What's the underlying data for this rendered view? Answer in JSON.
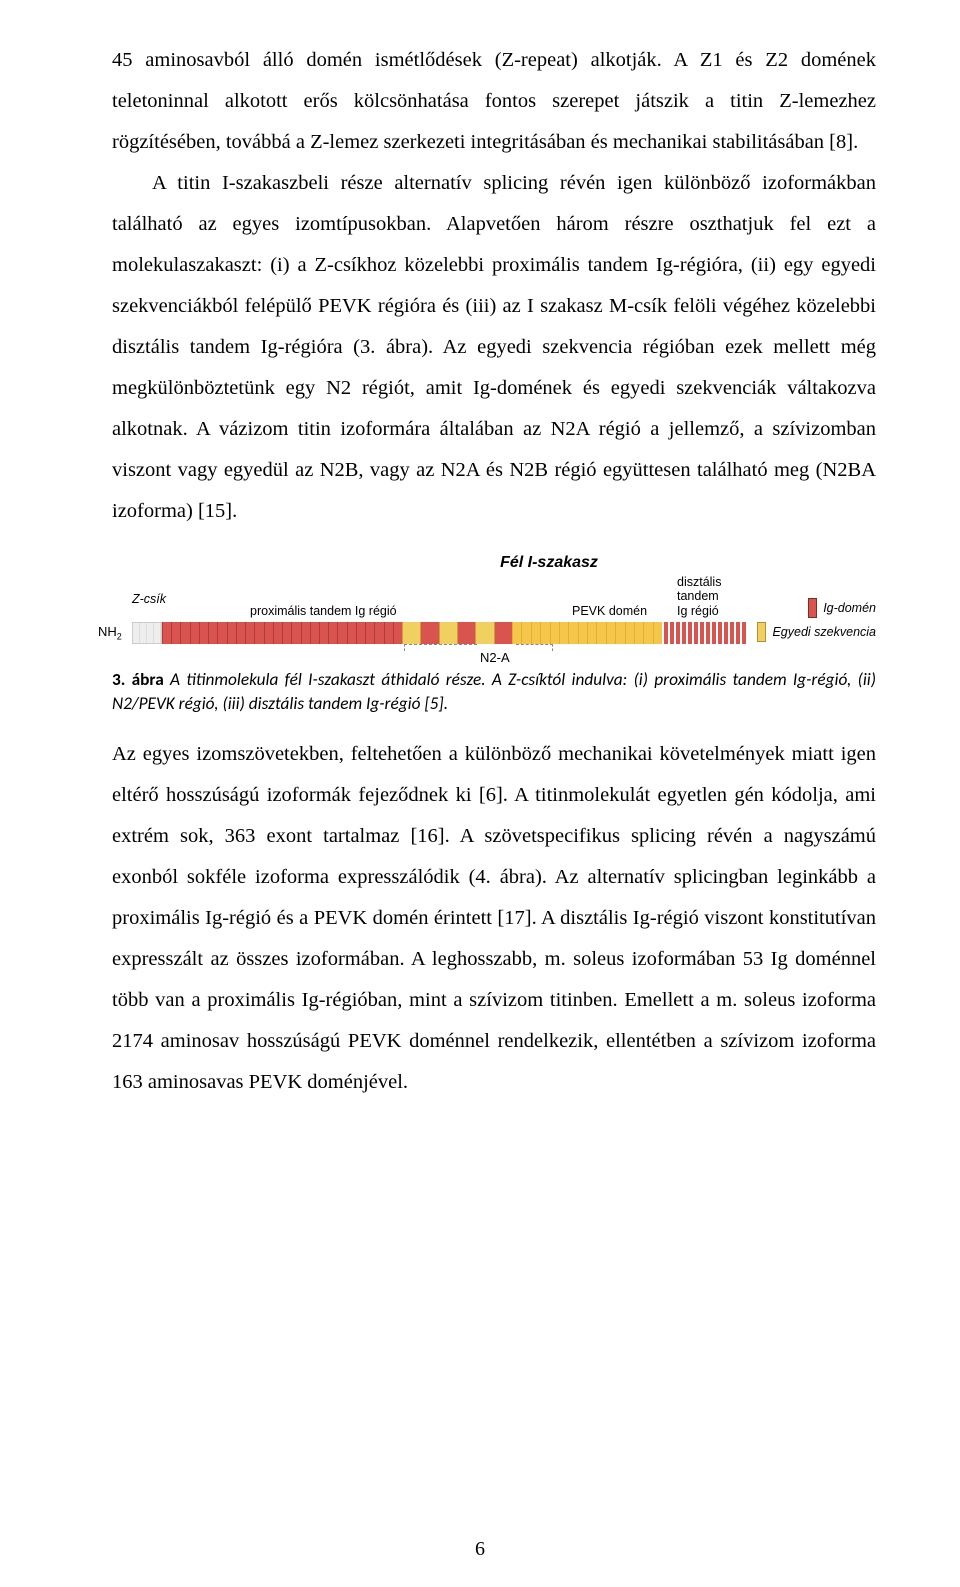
{
  "para1": "45 aminosavból álló domén ismétlődések (Z-repeat) alkotják. A Z1 és Z2 domének teletoninnal alkotott erős kölcsönhatása fontos szerepet játszik a titin Z-lemezhez rögzítésében, továbbá a Z-lemez szerkezeti integritásában és mechanikai stabilitásában [8].",
  "para2": "A titin I-szakaszbeli része alternatív splicing révén igen különböző izoformákban található az egyes izomtípusokban. Alapvetően három részre oszthatjuk fel ezt a molekulaszakaszt: (i) a Z-csíkhoz közelebbi proximális tandem Ig-régióra, (ii) egy egyedi szekvenciákból felépülő PEVK régióra és (iii) az I szakasz M-csík felöli végéhez közelebbi disztális tandem Ig-régióra (3. ábra). Az egyedi szekvencia régióban ezek mellett még megkülönböztetünk egy N2 régiót, amit Ig-domének és egyedi szekvenciák váltakozva alkotnak. A vázizom titin izoformára általában az N2A régió a jellemző, a szívizomban viszont vagy egyedül az N2B, vagy az N2A és N2B régió együttesen található meg (N2BA izoforma) [15].",
  "fig": {
    "title": "Fél I-szakasz",
    "z_csik": "Z-csík",
    "prox_label": "proximális tandem Ig régió",
    "pevk_label": "PEVK domén",
    "dist_label_l1": "disztális",
    "dist_label_l2": "tandem",
    "dist_label_l3": "Ig régió",
    "nh2": "NH",
    "nh2_sub": "2",
    "n2a": "N2-A",
    "legend_ig": "Ig-domén",
    "legend_unique": "Egyedi szekvencia",
    "colors": {
      "ig": "#d9534f",
      "unique": "#f0d060",
      "pevk_stripe": "#f5c64a",
      "zdisk": "#eeeeee",
      "line": "#4a7ab8"
    },
    "prox_ig_count": 26,
    "n2a_blocks": 6,
    "pevk_stripes": 16,
    "dist_ig_count": 14
  },
  "caption_bold": "3. ábra",
  "caption_rest": " A titinmolekula fél I-szakaszt áthidaló része. A Z-csíktól indulva: (i) proximális tandem Ig-régió, (ii) N2/PEVK régió, (iii) disztális tandem Ig-régió [5].",
  "para3": "Az egyes izomszövetekben, feltehetően a különböző mechanikai követelmények miatt igen eltérő hosszúságú izoformák fejeződnek ki [6]. A titinmolekulát egyetlen gén kódolja, ami extrém sok, 363 exont tartalmaz [16]. A szövetspecifikus splicing révén  a nagyszámú exonból sokféle izoforma expresszálódik (4. ábra). Az alternatív splicingban leginkább a proximális Ig-régió és a PEVK domén érintett [17]. A disztális Ig-régió viszont konstitutívan expresszált az összes izoformában. A leghosszabb, m. soleus izoformában 53 Ig doménnel több van a proximális Ig-régióban, mint a szívizom titinben. Emellett a m. soleus izoforma 2174 aminosav hosszúságú PEVK doménnel rendelkezik, ellentétben a szívizom izoforma 163 aminosavas PEVK doménjével.",
  "page_number": "6"
}
